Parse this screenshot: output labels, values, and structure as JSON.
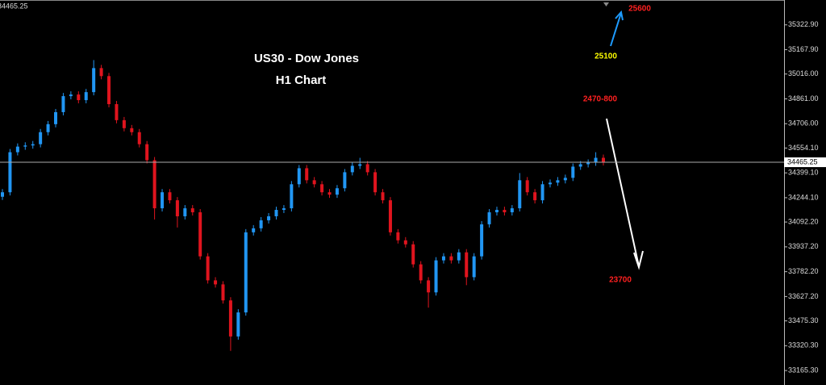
{
  "chart_data": {
    "type": "candlestick",
    "title": "US30 - Dow Jones",
    "subtitle": "H1 Chart",
    "up_color": "#2196f3",
    "down_color": "#e0141e",
    "ylim": [
      33075,
      35478
    ],
    "yticks": [
      {
        "value": 35322.9,
        "label": "35322.90"
      },
      {
        "value": 35167.9,
        "label": "35167.90"
      },
      {
        "value": 35016.0,
        "label": "35016.00"
      },
      {
        "value": 34861.0,
        "label": "34861.00"
      },
      {
        "value": 34706.0,
        "label": "34706.00"
      },
      {
        "value": 34554.1,
        "label": "34554.10"
      },
      {
        "value": 34399.1,
        "label": "34399.10"
      },
      {
        "value": 34244.1,
        "label": "34244.10"
      },
      {
        "value": 34092.2,
        "label": "34092.20"
      },
      {
        "value": 33937.2,
        "label": "33937.20"
      },
      {
        "value": 33782.2,
        "label": "33782.20"
      },
      {
        "value": 33627.2,
        "label": "33627.20"
      },
      {
        "value": 33475.3,
        "label": "33475.30"
      },
      {
        "value": 33320.3,
        "label": "33320.30"
      },
      {
        "value": 33165.3,
        "label": "33165.30"
      }
    ],
    "last_price": {
      "value": 34465.25,
      "label": "34465.25"
    },
    "annotations": [
      {
        "text": "25600",
        "color": "#ff2020"
      },
      {
        "text": "25100",
        "color": "#ffff00"
      },
      {
        "text": "2470-800",
        "color": "#ff2020"
      },
      {
        "text": "23700",
        "color": "#ff2020"
      }
    ],
    "ohlc": [
      [
        34250,
        34298,
        34230,
        34278
      ],
      [
        34278,
        34548,
        34258,
        34528
      ],
      [
        34528,
        34583,
        34508,
        34563
      ],
      [
        34563,
        34590,
        34543,
        34570
      ],
      [
        34570,
        34598,
        34550,
        34578
      ],
      [
        34578,
        34673,
        34558,
        34653
      ],
      [
        34653,
        34723,
        34633,
        34703
      ],
      [
        34703,
        34798,
        34683,
        34778
      ],
      [
        34778,
        34898,
        34758,
        34878
      ],
      [
        34878,
        34908,
        34858,
        34888
      ],
      [
        34888,
        34908,
        34833,
        34853
      ],
      [
        34853,
        34923,
        34833,
        34903
      ],
      [
        34903,
        35103,
        34883,
        35053
      ],
      [
        35053,
        35073,
        34983,
        35003
      ],
      [
        35003,
        35023,
        34808,
        34828
      ],
      [
        34828,
        34848,
        34708,
        34728
      ],
      [
        34728,
        34748,
        34658,
        34678
      ],
      [
        34678,
        34698,
        34633,
        34653
      ],
      [
        34653,
        34673,
        34558,
        34578
      ],
      [
        34578,
        34598,
        34458,
        34478
      ],
      [
        34478,
        34498,
        34108,
        34178
      ],
      [
        34178,
        34298,
        34158,
        34278
      ],
      [
        34278,
        34298,
        34208,
        34228
      ],
      [
        34228,
        34248,
        34058,
        34128
      ],
      [
        34128,
        34198,
        34108,
        34178
      ],
      [
        34178,
        34198,
        34133,
        34153
      ],
      [
        34153,
        34173,
        33858,
        33878
      ],
      [
        33878,
        33898,
        33708,
        33728
      ],
      [
        33728,
        33748,
        33683,
        33703
      ],
      [
        33703,
        33723,
        33583,
        33603
      ],
      [
        33603,
        33623,
        33288,
        33378
      ],
      [
        33378,
        33548,
        33358,
        33528
      ],
      [
        33528,
        34048,
        33508,
        34028
      ],
      [
        34028,
        34073,
        34008,
        34053
      ],
      [
        34053,
        34123,
        34033,
        34103
      ],
      [
        34103,
        34148,
        34083,
        34128
      ],
      [
        34128,
        34188,
        34108,
        34168
      ],
      [
        34168,
        34198,
        34148,
        34178
      ],
      [
        34178,
        34348,
        34158,
        34328
      ],
      [
        34328,
        34448,
        34308,
        34428
      ],
      [
        34428,
        34448,
        34333,
        34353
      ],
      [
        34353,
        34373,
        34308,
        34328
      ],
      [
        34328,
        34348,
        34258,
        34278
      ],
      [
        34278,
        34298,
        34243,
        34263
      ],
      [
        34263,
        34323,
        34243,
        34303
      ],
      [
        34303,
        34423,
        34283,
        34403
      ],
      [
        34403,
        34463,
        34383,
        34443
      ],
      [
        34443,
        34493,
        34423,
        34453
      ],
      [
        34453,
        34473,
        34383,
        34403
      ],
      [
        34403,
        34423,
        34258,
        34278
      ],
      [
        34278,
        34298,
        34208,
        34228
      ],
      [
        34228,
        34248,
        34008,
        34028
      ],
      [
        34028,
        34048,
        33958,
        33978
      ],
      [
        33978,
        33998,
        33933,
        33953
      ],
      [
        33953,
        33973,
        33808,
        33828
      ],
      [
        33828,
        33848,
        33708,
        33728
      ],
      [
        33728,
        33748,
        33558,
        33653
      ],
      [
        33653,
        33873,
        33633,
        33853
      ],
      [
        33853,
        33898,
        33833,
        33878
      ],
      [
        33878,
        33898,
        33833,
        33853
      ],
      [
        33853,
        33923,
        33833,
        33903
      ],
      [
        33903,
        33923,
        33698,
        33748
      ],
      [
        33748,
        33898,
        33728,
        33878
      ],
      [
        33878,
        34098,
        33858,
        34078
      ],
      [
        34078,
        34173,
        34058,
        34153
      ],
      [
        34153,
        34188,
        34133,
        34168
      ],
      [
        34168,
        34188,
        34133,
        34153
      ],
      [
        34153,
        34198,
        34133,
        34178
      ],
      [
        34178,
        34398,
        34158,
        34353
      ],
      [
        34353,
        34373,
        34258,
        34278
      ],
      [
        34278,
        34298,
        34208,
        34228
      ],
      [
        34228,
        34348,
        34208,
        34328
      ],
      [
        34328,
        34358,
        34308,
        34338
      ],
      [
        34338,
        34373,
        34318,
        34353
      ],
      [
        34353,
        34388,
        34333,
        34368
      ],
      [
        34368,
        34458,
        34348,
        34438
      ],
      [
        34438,
        34473,
        34418,
        34453
      ],
      [
        34453,
        34483,
        34433,
        34463
      ],
      [
        34463,
        34528,
        34443,
        34493
      ],
      [
        34493,
        34513,
        34445,
        34465.25
      ]
    ]
  }
}
